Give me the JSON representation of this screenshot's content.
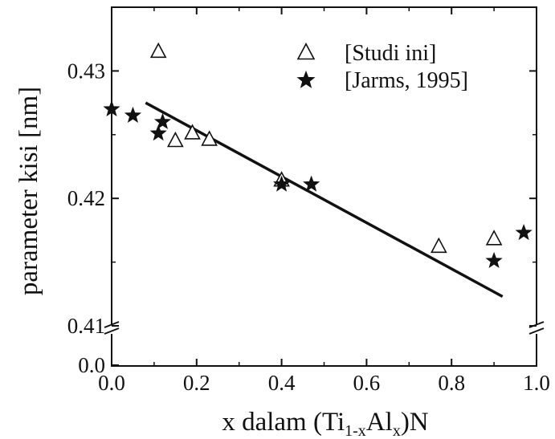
{
  "chart_data": {
    "type": "scatter",
    "xlabel": {
      "main": "x dalam (Ti",
      "sub1": "1-x",
      "mid": "Al",
      "sub2": "x",
      "end": ")N"
    },
    "ylabel": "parameter kisi [nm]",
    "xlim": [
      0.0,
      1.0
    ],
    "ylim": [
      0.41,
      0.435
    ],
    "y_break": {
      "below": 0.41,
      "bottom_tick": 0.0
    },
    "x_ticks": [
      {
        "value": 0.0,
        "label": "0.0"
      },
      {
        "value": 0.2,
        "label": "0.2"
      },
      {
        "value": 0.4,
        "label": "0.4"
      },
      {
        "value": 0.6,
        "label": "0.6"
      },
      {
        "value": 0.8,
        "label": "0.8"
      },
      {
        "value": 1.0,
        "label": "1.0"
      }
    ],
    "y_ticks": [
      {
        "value": 0.41,
        "label": "0.41"
      },
      {
        "value": 0.42,
        "label": "0.42"
      },
      {
        "value": 0.43,
        "label": "0.43"
      }
    ],
    "y_break_tick_label": "0.0",
    "legend_position": "top-right",
    "grid": false,
    "series": [
      {
        "name": "[Studi ini]",
        "marker": "open-triangle",
        "color": "#111111",
        "points": [
          [
            0.11,
            0.4315
          ],
          [
            0.15,
            0.4245
          ],
          [
            0.19,
            0.4251
          ],
          [
            0.23,
            0.4246
          ],
          [
            0.4,
            0.4214
          ],
          [
            0.77,
            0.4162
          ],
          [
            0.9,
            0.4168
          ]
        ]
      },
      {
        "name": "[Jarms, 1995]",
        "marker": "filled-star",
        "color": "#111111",
        "points": [
          [
            0.0,
            0.427
          ],
          [
            0.05,
            0.4265
          ],
          [
            0.11,
            0.4251
          ],
          [
            0.12,
            0.426
          ],
          [
            0.4,
            0.4211
          ],
          [
            0.47,
            0.4211
          ],
          [
            0.9,
            0.4151
          ],
          [
            0.97,
            0.4173
          ]
        ]
      }
    ],
    "fit_line": {
      "x": [
        0.08,
        0.92
      ],
      "y": [
        0.4275,
        0.4123
      ],
      "color": "#111111"
    }
  }
}
